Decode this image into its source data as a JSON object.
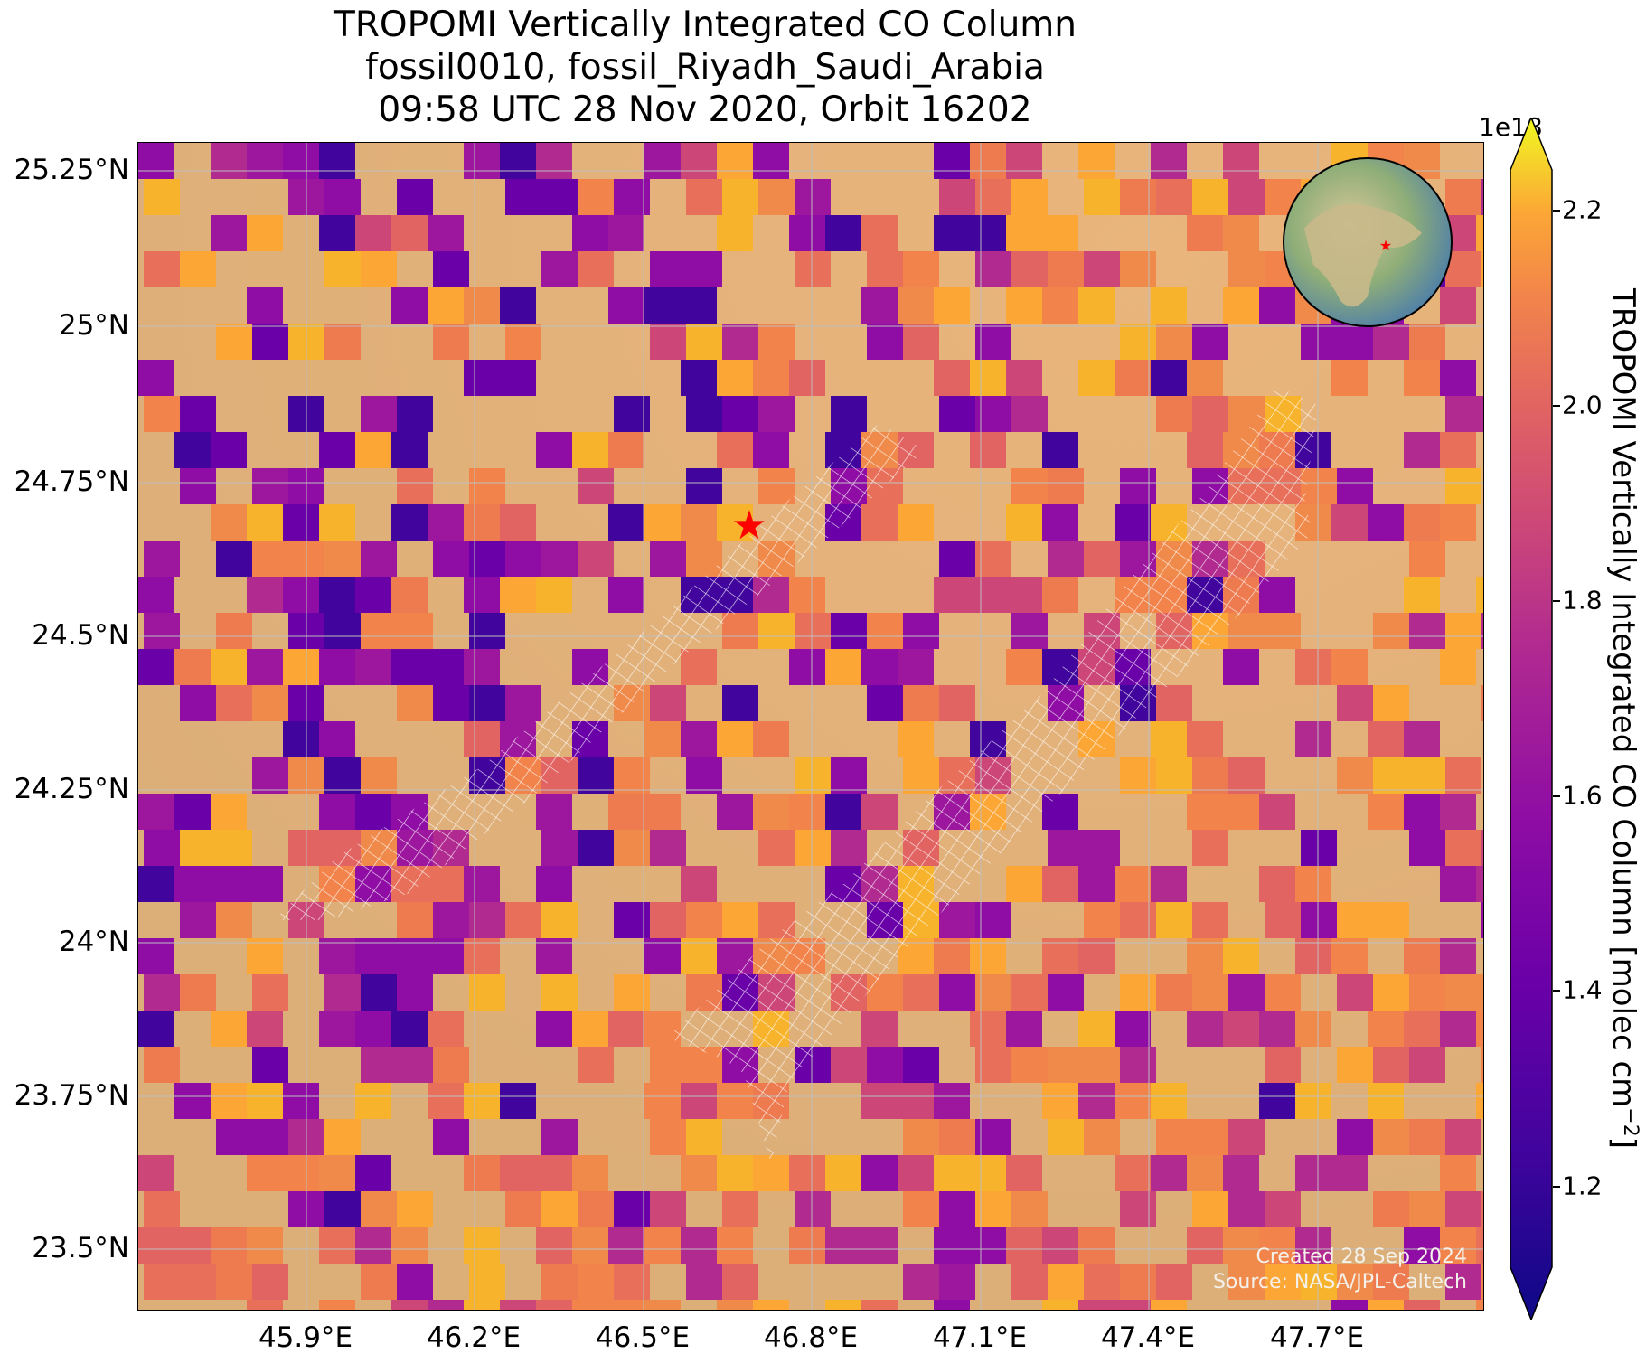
{
  "title": {
    "line1": "TROPOMI Vertically Integrated CO Column",
    "line2": "fossil0010, fossil_Riyadh_Saudi_Arabia",
    "line3": "09:58 UTC 28 Nov 2020, Orbit 16202"
  },
  "axes": {
    "lat_ticks": [
      "25.25°N",
      "25°N",
      "24.75°N",
      "24.5°N",
      "24.25°N",
      "24°N",
      "23.75°N",
      "23.5°N"
    ],
    "lon_ticks": [
      "45.9°E",
      "46.2°E",
      "46.5°E",
      "46.8°E",
      "47.1°E",
      "47.4°E",
      "47.7°E"
    ]
  },
  "colorbar": {
    "exponent": "1e18",
    "ticks": [
      "2.2",
      "2.0",
      "1.8",
      "1.6",
      "1.4",
      "1.2"
    ],
    "label_main": "TROPOMI Vertically Integrated CO Column [molec cm",
    "label_sup": "−2",
    "label_end": "]",
    "colormap": "plasma"
  },
  "credits": {
    "created": "Created 28 Sep 2024",
    "source": "Source: NASA/JPL-Caltech"
  },
  "marker": {
    "name": "Riyadh",
    "symbol": "★",
    "color": "#ff0000"
  },
  "inset": {
    "type": "globe",
    "marker_color": "#ff0000"
  },
  "colors": {
    "background_desert": "#e2b27a",
    "overlay_lines": "#ffffff"
  }
}
